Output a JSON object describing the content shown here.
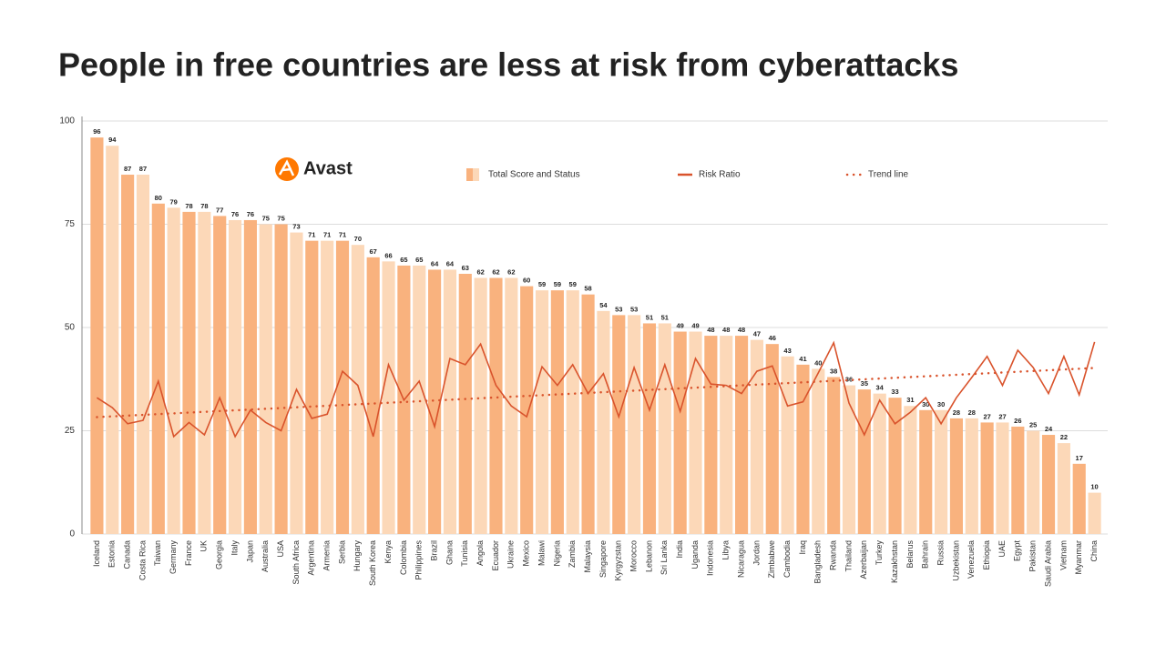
{
  "chart_data": {
    "type": "bar",
    "title": "People in free countries are less at risk from cyberattacks",
    "brand": "Avast",
    "categories": [
      "Iceland",
      "Estonia",
      "Canada",
      "Costa Rica",
      "Taiwan",
      "Germany",
      "France",
      "UK",
      "Georgia",
      "Italy",
      "Japan",
      "Australia",
      "USA",
      "South Africa",
      "Argentina",
      "Armenia",
      "Serbia",
      "Hungary",
      "South Korea",
      "Kenya",
      "Colombia",
      "Philippines",
      "Brazil",
      "Ghana",
      "Tunisia",
      "Angola",
      "Ecuador",
      "Ukraine",
      "Mexico",
      "Malawi",
      "Nigeria",
      "Zambia",
      "Malaysia",
      "Singapore",
      "Kyrgyzstan",
      "Morocco",
      "Lebanon",
      "Sri Lanka",
      "India",
      "Uganda",
      "Indonesia",
      "Libya",
      "Nicaragua",
      "Jordan",
      "Zimbabwe",
      "Cambodia",
      "Iraq",
      "Bangladesh",
      "Rwanda",
      "Thailand",
      "Azerbaijan",
      "Turkey",
      "Kazakhstan",
      "Belarus",
      "Bahrain",
      "Russia",
      "Uzbekistan",
      "Venezuela",
      "Ethiopia",
      "UAE",
      "Egypt",
      "Pakistan",
      "Saudi Arabia",
      "Vietnam",
      "Myanmar",
      "China"
    ],
    "series": [
      {
        "name": "Total Score and Status",
        "type": "bar",
        "color": "#f9b27e",
        "alt_color": "#fcd8b8",
        "values": [
          96,
          94,
          87,
          87,
          80,
          79,
          78,
          78,
          77,
          76,
          76,
          75,
          75,
          73,
          71,
          71,
          71,
          70,
          67,
          66,
          65,
          65,
          64,
          64,
          63,
          62,
          62,
          62,
          60,
          59,
          59,
          59,
          58,
          54,
          53,
          53,
          51,
          51,
          49,
          49,
          48,
          48,
          48,
          47,
          46,
          43,
          41,
          40,
          38,
          36,
          35,
          34,
          33,
          31,
          30,
          30,
          28,
          28,
          27,
          27,
          26,
          25,
          24,
          22,
          17,
          10
        ]
      },
      {
        "name": "Risk Ratio",
        "type": "line",
        "color": "#d9532c",
        "values": [
          33,
          30.6,
          26.7,
          27.5,
          37,
          23.6,
          27,
          24,
          33,
          23.6,
          30,
          27,
          25,
          35,
          28,
          29,
          39.4,
          36,
          23.6,
          41,
          32.4,
          37,
          26,
          42.5,
          41,
          46,
          36,
          31,
          28.4,
          40.5,
          36,
          41,
          34,
          38.8,
          28.4,
          40.3,
          30,
          41,
          29.7,
          42.5,
          36.3,
          36,
          34,
          39.4,
          40.7,
          31,
          32,
          39,
          46.3,
          31.7,
          24,
          32.4,
          26.7,
          29.5,
          33,
          26.7,
          33,
          37.9,
          43,
          36,
          44.5,
          40.3,
          34,
          43,
          33.7,
          46.5
        ]
      }
    ],
    "trend": {
      "name": "Trend line",
      "color": "#d9532c",
      "start": 28.3,
      "end": 40.2
    },
    "ylim": [
      0,
      100
    ],
    "yticks": [
      0,
      25,
      50,
      75,
      100
    ],
    "grid": true
  }
}
